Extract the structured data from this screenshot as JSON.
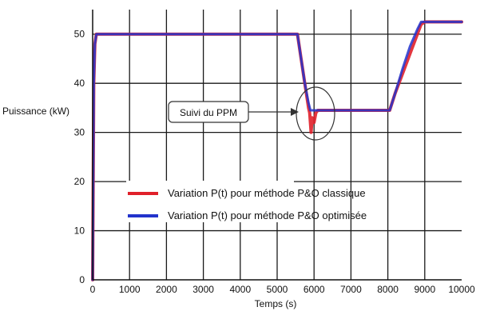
{
  "chart_data": {
    "type": "line",
    "xlabel": "Temps (s)",
    "ylabel": "Puissance (kW)",
    "xlim": [
      0,
      10000
    ],
    "ylim": [
      0,
      55
    ],
    "xticks": [
      0,
      1000,
      2000,
      3000,
      4000,
      5000,
      6000,
      7000,
      8000,
      9000,
      10000
    ],
    "yticks": [
      0,
      10,
      20,
      30,
      40,
      50
    ],
    "grid": true,
    "legend_position": "center-left, inside plot",
    "annotation": {
      "text": "Suivi du PPM",
      "target": [
        5950,
        34
      ],
      "shape": "ellipse around the transient at t ≈ 6000 s"
    },
    "series": [
      {
        "name": "Variation P(t) pour méthode P&O classique",
        "color": "#e0202a",
        "x": [
          0,
          30,
          60,
          100,
          5550,
          5650,
          5750,
          5850,
          5880,
          5920,
          5950,
          6000,
          6050,
          6100,
          8050,
          8200,
          8400,
          8600,
          8800,
          8900,
          9000,
          9500,
          10000
        ],
        "y": [
          0,
          40,
          48,
          50,
          50,
          45,
          40,
          35,
          34,
          30,
          33,
          32,
          34,
          34.5,
          34.5,
          38,
          42,
          46,
          50,
          52,
          52.5,
          52.5,
          52.5
        ]
      },
      {
        "name": "Variation P(t) pour méthode P&O optimisée",
        "color": "#2233cc",
        "x": [
          0,
          30,
          60,
          100,
          5550,
          5650,
          5750,
          5850,
          5900,
          6000,
          8050,
          8200,
          8400,
          8600,
          8800,
          8900,
          9000,
          9500,
          10000
        ],
        "y": [
          0,
          40,
          48,
          50,
          50,
          45,
          40,
          36,
          34.5,
          34.5,
          34.5,
          38,
          43,
          47.5,
          51,
          52.5,
          52.5,
          52.5,
          52.5
        ]
      }
    ]
  }
}
